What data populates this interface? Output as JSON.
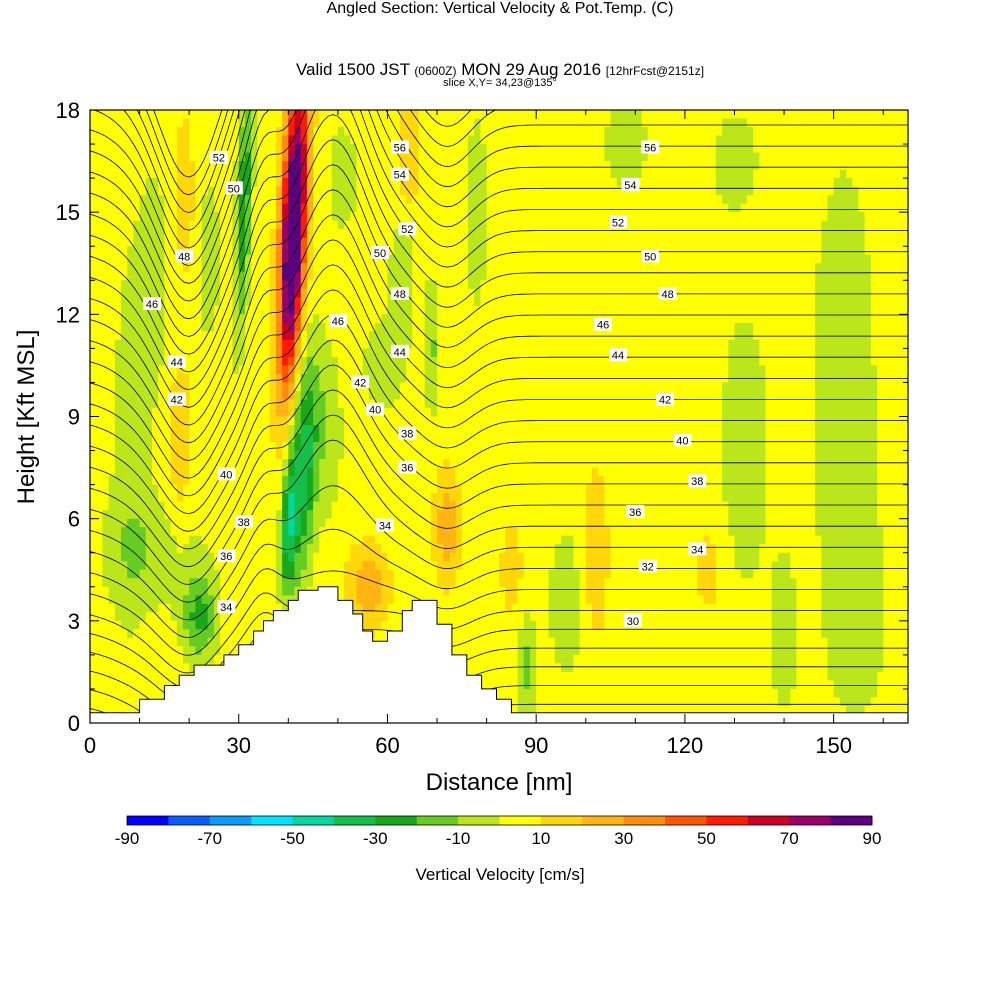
{
  "header": {
    "title": "Angled Section: Vertical Velocity & Pot.Temp.",
    "title_units": "(C)",
    "valid_prefix": "Valid 1500 JST",
    "valid_utc": "(0600Z)",
    "valid_date": "MON 29 Aug 2016",
    "forecast": "[12hrFcst@2151z]",
    "slice": "slice X,Y= 34,23@135°"
  },
  "chart_data": {
    "type": "heatmap",
    "xlabel": "Distance [nm]",
    "ylabel": "Height [Kft MSL]",
    "xlim": [
      0,
      165
    ],
    "ylim": [
      0,
      18
    ],
    "x_ticks": [
      0,
      30,
      60,
      90,
      120,
      150
    ],
    "y_ticks": [
      0,
      3,
      6,
      9,
      12,
      15,
      18
    ],
    "colorbar": {
      "label": "Vertical Velocity [cm/s]",
      "ticks": [
        -90,
        -70,
        -50,
        -30,
        -10,
        10,
        30,
        50,
        70,
        90
      ],
      "levels": [
        -90,
        -80,
        -70,
        -60,
        -50,
        -40,
        -30,
        -20,
        -10,
        0,
        10,
        20,
        30,
        40,
        50,
        60,
        70,
        80,
        90
      ],
      "colors": [
        "#0000ff",
        "#0a5cff",
        "#0a9bff",
        "#00e5ff",
        "#00d8a0",
        "#14c04a",
        "#1aa81a",
        "#66cc22",
        "#bbe61c",
        "#ffff00",
        "#ffd70a",
        "#ffb414",
        "#ff8c0a",
        "#ff5500",
        "#ff1a00",
        "#cc0022",
        "#99006a",
        "#5a0080"
      ]
    },
    "terrain_profile": [
      [
        0,
        0.3
      ],
      [
        10,
        0.3
      ],
      [
        10,
        0.7
      ],
      [
        15,
        0.7
      ],
      [
        15,
        1.1
      ],
      [
        18,
        1.1
      ],
      [
        18,
        1.4
      ],
      [
        21,
        1.4
      ],
      [
        21,
        1.7
      ],
      [
        27,
        1.7
      ],
      [
        27,
        2.0
      ],
      [
        30,
        2.0
      ],
      [
        30,
        2.3
      ],
      [
        33,
        2.3
      ],
      [
        33,
        2.7
      ],
      [
        35,
        2.7
      ],
      [
        35,
        3.0
      ],
      [
        37,
        3.0
      ],
      [
        37,
        3.3
      ],
      [
        40,
        3.3
      ],
      [
        40,
        3.6
      ],
      [
        42,
        3.6
      ],
      [
        42,
        3.9
      ],
      [
        46,
        3.9
      ],
      [
        46,
        4.0
      ],
      [
        50,
        4.0
      ],
      [
        50,
        3.6
      ],
      [
        53,
        3.6
      ],
      [
        53,
        3.2
      ],
      [
        55,
        3.2
      ],
      [
        55,
        2.7
      ],
      [
        57,
        2.7
      ],
      [
        57,
        2.4
      ],
      [
        60,
        2.4
      ],
      [
        60,
        2.7
      ],
      [
        63,
        2.7
      ],
      [
        63,
        3.3
      ],
      [
        65,
        3.3
      ],
      [
        65,
        3.6
      ],
      [
        70,
        3.6
      ],
      [
        70,
        2.9
      ],
      [
        73,
        2.9
      ],
      [
        73,
        2.0
      ],
      [
        76,
        2.0
      ],
      [
        76,
        1.4
      ],
      [
        79,
        1.4
      ],
      [
        79,
        1.0
      ],
      [
        82,
        1.0
      ],
      [
        82,
        0.7
      ],
      [
        85,
        0.7
      ],
      [
        85,
        0.3
      ],
      [
        165,
        0.3
      ]
    ],
    "theta_label_positions": [
      {
        "v": "52",
        "x": 26,
        "y": 16.6
      },
      {
        "v": "50",
        "x": 29,
        "y": 15.7
      },
      {
        "v": "48",
        "x": 19,
        "y": 13.7
      },
      {
        "v": "46",
        "x": 12.5,
        "y": 12.3
      },
      {
        "v": "44",
        "x": 17.5,
        "y": 10.6
      },
      {
        "v": "42",
        "x": 17.5,
        "y": 9.5
      },
      {
        "v": "40",
        "x": 27.5,
        "y": 7.3
      },
      {
        "v": "38",
        "x": 31,
        "y": 5.9
      },
      {
        "v": "36",
        "x": 27.5,
        "y": 4.9
      },
      {
        "v": "34",
        "x": 27.5,
        "y": 3.4
      },
      {
        "v": "56",
        "x": 62.5,
        "y": 16.9
      },
      {
        "v": "54",
        "x": 62.5,
        "y": 16.1
      },
      {
        "v": "52",
        "x": 64,
        "y": 14.5
      },
      {
        "v": "50",
        "x": 58.5,
        "y": 13.8
      },
      {
        "v": "48",
        "x": 62.5,
        "y": 12.6
      },
      {
        "v": "46",
        "x": 50,
        "y": 11.8
      },
      {
        "v": "44",
        "x": 62.5,
        "y": 10.9
      },
      {
        "v": "42",
        "x": 54.5,
        "y": 10.0
      },
      {
        "v": "40",
        "x": 57.5,
        "y": 9.2
      },
      {
        "v": "38",
        "x": 64,
        "y": 8.5
      },
      {
        "v": "36",
        "x": 64,
        "y": 7.5
      },
      {
        "v": "34",
        "x": 59.5,
        "y": 5.8
      },
      {
        "v": "56",
        "x": 113,
        "y": 16.9
      },
      {
        "v": "54",
        "x": 109,
        "y": 15.8
      },
      {
        "v": "52",
        "x": 106.5,
        "y": 14.7
      },
      {
        "v": "50",
        "x": 113,
        "y": 13.7
      },
      {
        "v": "48",
        "x": 116.5,
        "y": 12.6
      },
      {
        "v": "46",
        "x": 103.5,
        "y": 11.7
      },
      {
        "v": "44",
        "x": 106.5,
        "y": 10.8
      },
      {
        "v": "42",
        "x": 116,
        "y": 9.5
      },
      {
        "v": "40",
        "x": 119.5,
        "y": 8.3
      },
      {
        "v": "38",
        "x": 122.5,
        "y": 7.1
      },
      {
        "v": "36",
        "x": 110,
        "y": 6.2
      },
      {
        "v": "34",
        "x": 122.5,
        "y": 5.1
      },
      {
        "v": "32",
        "x": 112.5,
        "y": 4.6
      },
      {
        "v": "30",
        "x": 109.5,
        "y": 3.0
      }
    ]
  }
}
